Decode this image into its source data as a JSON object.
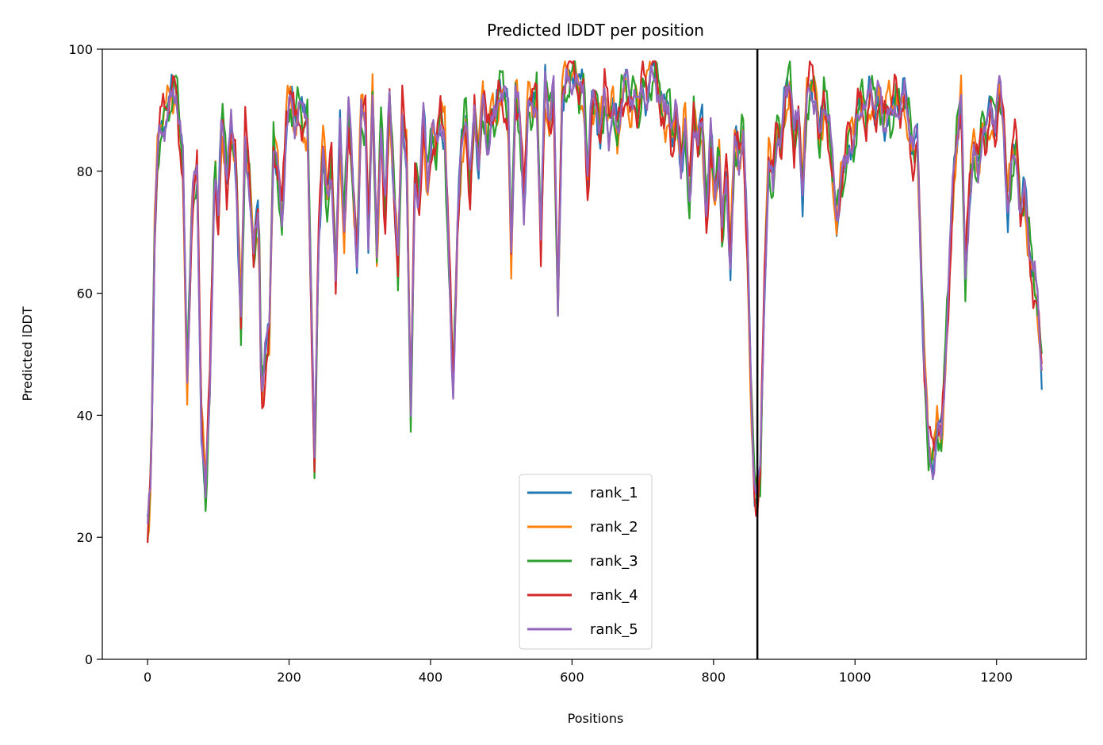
{
  "chart_data": {
    "type": "line",
    "title": "Predicted lDDT per position",
    "xlabel": "Positions",
    "ylabel": "Predicted lDDT",
    "xlim": [
      -64,
      1327
    ],
    "ylim": [
      0,
      100
    ],
    "x_ticks": [
      0,
      200,
      400,
      600,
      800,
      1000,
      1200
    ],
    "y_ticks": [
      0,
      20,
      40,
      60,
      80,
      100
    ],
    "x_tick_labels": [
      "0",
      "200",
      "400",
      "600",
      "800",
      "1000",
      "1200"
    ],
    "y_tick_labels": [
      "0",
      "20",
      "40",
      "60",
      "80",
      "100"
    ],
    "vline_x": 862,
    "legend_position": "lower center",
    "base_profile": [
      [
        0,
        20
      ],
      [
        5,
        31
      ],
      [
        10,
        70
      ],
      [
        15,
        85
      ],
      [
        20,
        88
      ],
      [
        25,
        90
      ],
      [
        30,
        91
      ],
      [
        40,
        94
      ],
      [
        50,
        80
      ],
      [
        56,
        45
      ],
      [
        63,
        75
      ],
      [
        70,
        80
      ],
      [
        76,
        40
      ],
      [
        82,
        27
      ],
      [
        88,
        45
      ],
      [
        95,
        82
      ],
      [
        100,
        70
      ],
      [
        105,
        90
      ],
      [
        112,
        78
      ],
      [
        118,
        86
      ],
      [
        125,
        82
      ],
      [
        132,
        55
      ],
      [
        138,
        86
      ],
      [
        144,
        79
      ],
      [
        150,
        66
      ],
      [
        157,
        74
      ],
      [
        161,
        42
      ],
      [
        166,
        48
      ],
      [
        172,
        53
      ],
      [
        178,
        85
      ],
      [
        184,
        80
      ],
      [
        190,
        72
      ],
      [
        196,
        89
      ],
      [
        202,
        92
      ],
      [
        208,
        88
      ],
      [
        214,
        91
      ],
      [
        220,
        87
      ],
      [
        226,
        88
      ],
      [
        232,
        55
      ],
      [
        236,
        31
      ],
      [
        242,
        70
      ],
      [
        248,
        85
      ],
      [
        254,
        75
      ],
      [
        260,
        82
      ],
      [
        266,
        63
      ],
      [
        272,
        86
      ],
      [
        278,
        70
      ],
      [
        284,
        90
      ],
      [
        290,
        78
      ],
      [
        296,
        66
      ],
      [
        302,
        90
      ],
      [
        308,
        88
      ],
      [
        312,
        70
      ],
      [
        318,
        93
      ],
      [
        324,
        66
      ],
      [
        330,
        88
      ],
      [
        336,
        72
      ],
      [
        342,
        92
      ],
      [
        348,
        78
      ],
      [
        354,
        64
      ],
      [
        360,
        90
      ],
      [
        366,
        84
      ],
      [
        372,
        40
      ],
      [
        378,
        80
      ],
      [
        384,
        75
      ],
      [
        390,
        88
      ],
      [
        396,
        78
      ],
      [
        402,
        86
      ],
      [
        408,
        83
      ],
      [
        414,
        90
      ],
      [
        420,
        86
      ],
      [
        426,
        66
      ],
      [
        432,
        45
      ],
      [
        438,
        70
      ],
      [
        444,
        84
      ],
      [
        450,
        89
      ],
      [
        456,
        76
      ],
      [
        462,
        90
      ],
      [
        468,
        82
      ],
      [
        474,
        92
      ],
      [
        480,
        85
      ],
      [
        486,
        90
      ],
      [
        492,
        88
      ],
      [
        498,
        94
      ],
      [
        504,
        92
      ],
      [
        510,
        88
      ],
      [
        514,
        66
      ],
      [
        520,
        93
      ],
      [
        526,
        88
      ],
      [
        532,
        75
      ],
      [
        538,
        92
      ],
      [
        544,
        90
      ],
      [
        550,
        93
      ],
      [
        556,
        68
      ],
      [
        562,
        94
      ],
      [
        568,
        88
      ],
      [
        574,
        93
      ],
      [
        580,
        57
      ],
      [
        586,
        93
      ],
      [
        592,
        95
      ],
      [
        598,
        96
      ],
      [
        604,
        97
      ],
      [
        610,
        92
      ],
      [
        616,
        94
      ],
      [
        622,
        78
      ],
      [
        628,
        90
      ],
      [
        634,
        92
      ],
      [
        640,
        86
      ],
      [
        646,
        93
      ],
      [
        652,
        88
      ],
      [
        658,
        91
      ],
      [
        664,
        86
      ],
      [
        670,
        92
      ],
      [
        676,
        94
      ],
      [
        682,
        90
      ],
      [
        688,
        93
      ],
      [
        694,
        89
      ],
      [
        700,
        95
      ],
      [
        706,
        93
      ],
      [
        712,
        96
      ],
      [
        718,
        97
      ],
      [
        724,
        92
      ],
      [
        730,
        88
      ],
      [
        736,
        91
      ],
      [
        742,
        85
      ],
      [
        748,
        89
      ],
      [
        754,
        82
      ],
      [
        760,
        88
      ],
      [
        766,
        75
      ],
      [
        772,
        90
      ],
      [
        778,
        84
      ],
      [
        784,
        88
      ],
      [
        790,
        72
      ],
      [
        796,
        85
      ],
      [
        802,
        76
      ],
      [
        808,
        83
      ],
      [
        812,
        70
      ],
      [
        818,
        80
      ],
      [
        824,
        66
      ],
      [
        830,
        85
      ],
      [
        836,
        82
      ],
      [
        842,
        87
      ],
      [
        848,
        66
      ],
      [
        854,
        40
      ],
      [
        858,
        28
      ],
      [
        862,
        26
      ],
      [
        866,
        30
      ],
      [
        872,
        62
      ],
      [
        878,
        82
      ],
      [
        884,
        78
      ],
      [
        890,
        88
      ],
      [
        896,
        84
      ],
      [
        902,
        92
      ],
      [
        908,
        95
      ],
      [
        914,
        84
      ],
      [
        920,
        89
      ],
      [
        926,
        77
      ],
      [
        932,
        92
      ],
      [
        938,
        95
      ],
      [
        944,
        93
      ],
      [
        950,
        84
      ],
      [
        956,
        92
      ],
      [
        962,
        88
      ],
      [
        968,
        80
      ],
      [
        974,
        72
      ],
      [
        980,
        78
      ],
      [
        986,
        81
      ],
      [
        992,
        87
      ],
      [
        998,
        84
      ],
      [
        1004,
        90
      ],
      [
        1010,
        92
      ],
      [
        1016,
        88
      ],
      [
        1022,
        93
      ],
      [
        1028,
        90
      ],
      [
        1034,
        92
      ],
      [
        1040,
        88
      ],
      [
        1046,
        91
      ],
      [
        1052,
        89
      ],
      [
        1058,
        93
      ],
      [
        1064,
        90
      ],
      [
        1070,
        92
      ],
      [
        1076,
        88
      ],
      [
        1082,
        82
      ],
      [
        1088,
        85
      ],
      [
        1092,
        70
      ],
      [
        1098,
        48
      ],
      [
        1104,
        35
      ],
      [
        1110,
        33
      ],
      [
        1116,
        38
      ],
      [
        1122,
        36
      ],
      [
        1128,
        50
      ],
      [
        1134,
        65
      ],
      [
        1140,
        80
      ],
      [
        1146,
        88
      ],
      [
        1150,
        92
      ],
      [
        1156,
        62
      ],
      [
        1162,
        78
      ],
      [
        1168,
        84
      ],
      [
        1174,
        80
      ],
      [
        1180,
        88
      ],
      [
        1186,
        85
      ],
      [
        1192,
        90
      ],
      [
        1198,
        87
      ],
      [
        1204,
        93
      ],
      [
        1210,
        88
      ],
      [
        1216,
        74
      ],
      [
        1222,
        82
      ],
      [
        1228,
        85
      ],
      [
        1234,
        73
      ],
      [
        1240,
        76
      ],
      [
        1246,
        68
      ],
      [
        1252,
        62
      ],
      [
        1258,
        58
      ],
      [
        1264,
        48
      ]
    ],
    "series": [
      {
        "name": "rank_1",
        "color": "#1f77b4",
        "offset_seed": 1
      },
      {
        "name": "rank_2",
        "color": "#ff7f0e",
        "offset_seed": 2
      },
      {
        "name": "rank_3",
        "color": "#2ca02c",
        "offset_seed": 3
      },
      {
        "name": "rank_4",
        "color": "#d62728",
        "offset_seed": 4
      },
      {
        "name": "rank_5",
        "color": "#9467bd",
        "offset_seed": 5
      }
    ]
  }
}
